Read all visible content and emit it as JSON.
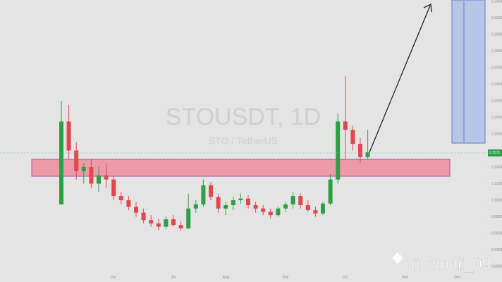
{
  "watermark": {
    "symbol": "STOUSDT, 1D",
    "name": "STO / TetherUS"
  },
  "credit": "@ modii_09",
  "chart_data": {
    "type": "candlestick",
    "categories": [
      null,
      null,
      null,
      null,
      null,
      null,
      null,
      "Jun",
      null,
      null,
      null,
      null,
      null,
      null,
      null,
      "Jul",
      null,
      null,
      null,
      null,
      null,
      null,
      "Aug",
      null,
      null,
      null,
      null,
      null,
      null,
      null,
      "Sep",
      null,
      null,
      null,
      null,
      null,
      null,
      null,
      "Oct",
      null,
      null,
      null,
      null,
      null,
      null,
      null,
      "Nov",
      null,
      null,
      null,
      null,
      null,
      null,
      "Dec",
      null,
      null,
      null,
      null
    ],
    "open": [
      0.095,
      0.195,
      0.16,
      0.135,
      0.14,
      0.12,
      0.13,
      0.125,
      0.105,
      0.1,
      0.092,
      0.085,
      0.076,
      0.072,
      0.068,
      0.077,
      0.07,
      0.066,
      0.09,
      0.095,
      0.118,
      0.104,
      0.09,
      0.094,
      0.1,
      0.102,
      0.094,
      0.09,
      0.086,
      0.082,
      0.09,
      0.095,
      0.105,
      0.094,
      0.088,
      0.084,
      0.096,
      0.125,
      0.195,
      0.185,
      0.168,
      0.152,
      null,
      null,
      null,
      null,
      null,
      null,
      null,
      null,
      null,
      null,
      null,
      null,
      null,
      null,
      null,
      null
    ],
    "high": [
      0.22,
      0.215,
      0.17,
      0.145,
      0.15,
      0.14,
      0.145,
      0.13,
      0.11,
      0.105,
      0.098,
      0.09,
      0.082,
      0.078,
      0.08,
      0.082,
      0.075,
      0.108,
      0.1,
      0.125,
      0.122,
      0.108,
      0.098,
      0.104,
      0.108,
      0.106,
      0.098,
      0.094,
      0.09,
      0.092,
      0.098,
      0.11,
      0.108,
      0.1,
      0.092,
      0.098,
      0.132,
      0.205,
      0.25,
      0.19,
      0.175,
      0.185,
      null,
      null,
      null,
      null,
      null,
      null,
      null,
      null,
      null,
      null,
      null,
      null,
      null,
      null,
      null,
      null
    ],
    "low": [
      0.095,
      0.15,
      0.125,
      0.12,
      0.115,
      0.11,
      0.115,
      0.1,
      0.095,
      0.088,
      0.08,
      0.072,
      0.068,
      0.064,
      0.065,
      0.068,
      0.063,
      0.065,
      0.085,
      0.092,
      0.1,
      0.085,
      0.082,
      0.088,
      0.096,
      0.09,
      0.085,
      0.082,
      0.078,
      0.08,
      0.086,
      0.09,
      0.09,
      0.086,
      0.08,
      0.082,
      0.094,
      0.12,
      0.15,
      0.16,
      0.145,
      0.15,
      null,
      null,
      null,
      null,
      null,
      null,
      null,
      null,
      null,
      null,
      null,
      null,
      null,
      null,
      null,
      null
    ],
    "close": [
      0.195,
      0.16,
      0.135,
      0.14,
      0.12,
      0.13,
      0.125,
      0.105,
      0.1,
      0.092,
      0.085,
      0.076,
      0.072,
      0.068,
      0.077,
      0.07,
      0.066,
      0.09,
      0.095,
      0.118,
      0.104,
      0.09,
      0.094,
      0.1,
      0.102,
      0.094,
      0.09,
      0.086,
      0.082,
      0.09,
      0.095,
      0.105,
      0.094,
      0.088,
      0.084,
      0.096,
      0.125,
      0.195,
      0.185,
      0.168,
      0.152,
      0.158,
      null,
      null,
      null,
      null,
      null,
      null,
      null,
      null,
      null,
      null,
      null,
      null,
      null,
      null,
      null,
      null
    ],
    "up_color": "#2f9e44",
    "down_color": "#e0484d",
    "last_price": 0.1571,
    "ylim": [
      0,
      0.34
    ],
    "yticks": [
      {
        "value": 0.02,
        "label": "0.0200"
      },
      {
        "value": 0.04,
        "label": "0.0400"
      },
      {
        "value": 0.06,
        "label": "0.0600"
      },
      {
        "value": 0.08,
        "label": "0.0800"
      },
      {
        "value": 0.1,
        "label": "0.1000"
      },
      {
        "value": 0.12,
        "label": "0.1200"
      },
      {
        "value": 0.14,
        "label": "0.1400"
      },
      {
        "value": 0.18,
        "label": "0.1800"
      },
      {
        "value": 0.2,
        "label": "0.2000"
      },
      {
        "value": 0.22,
        "label": "0.2200"
      },
      {
        "value": 0.24,
        "label": "0.2400"
      },
      {
        "value": 0.26,
        "label": "0.2600"
      },
      {
        "value": 0.28,
        "label": "0.2800"
      },
      {
        "value": 0.3,
        "label": "0.3000"
      },
      {
        "value": 0.32,
        "label": "0.3200"
      },
      {
        "value": 0.34,
        "label": "0.3400"
      }
    ],
    "grid": false
  }
}
